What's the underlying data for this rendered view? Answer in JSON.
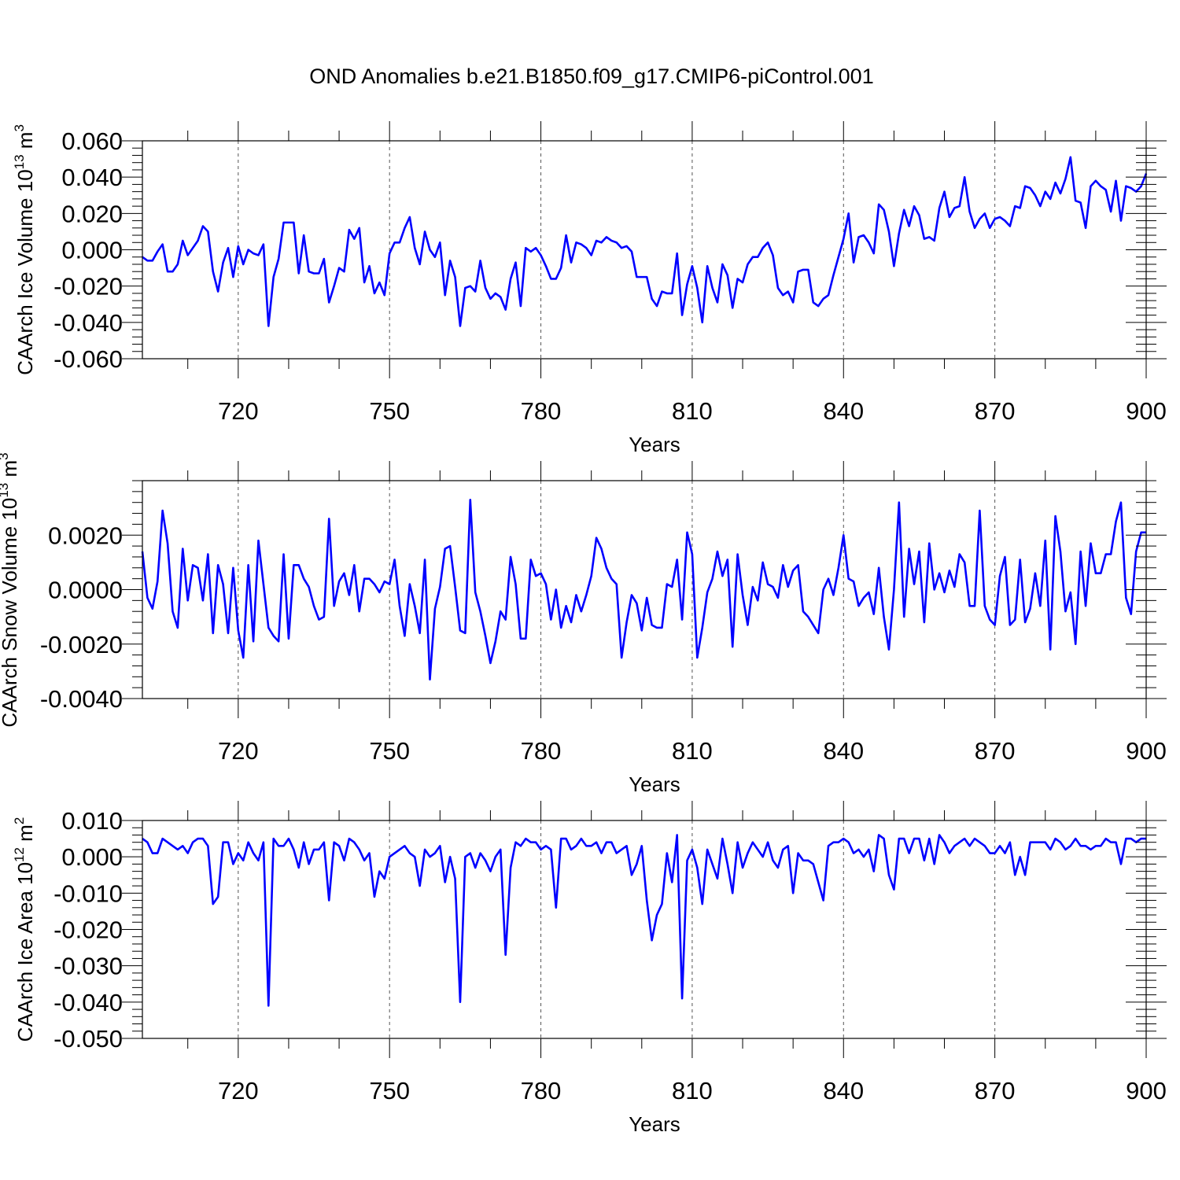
{
  "figure_title": "OND Anomalies b.e21.B1850.f09_g17.CMIP6-piControl.001",
  "chart_data": [
    {
      "type": "line",
      "title": "OND Anomalies b.e21.B1850.f09_g17.CMIP6-piControl.001",
      "xlabel": "Years",
      "ylabel": "CAArch Ice Volume 10¹³ m³",
      "ylabel_parts": {
        "base": "CAArch Ice Volume 10",
        "exp1": "13",
        "unit": " m",
        "exp2": "3"
      },
      "xlim": [
        701,
        900
      ],
      "ylim": [
        -0.06,
        0.06
      ],
      "xticks": [
        720,
        750,
        780,
        810,
        840,
        870,
        900
      ],
      "yticks": [
        -0.06,
        -0.04,
        -0.02,
        0.0,
        0.02,
        0.04,
        0.06
      ],
      "ytick_labels": [
        "-0.060",
        "-0.040",
        "-0.020",
        "0.000",
        "0.020",
        "0.040",
        "0.060"
      ],
      "grid": "vertical dashed at major x ticks",
      "series": [
        {
          "name": "CAArch Ice Volume",
          "color": "#0000ff",
          "x_start": 701,
          "values": [
            -0.004,
            -0.006,
            -0.006,
            -0.001,
            0.003,
            -0.012,
            -0.012,
            -0.008,
            0.005,
            -0.003,
            0.001,
            0.005,
            0.013,
            0.01,
            -0.012,
            -0.023,
            -0.007,
            0.001,
            -0.015,
            0.002,
            -0.008,
            0.0,
            -0.002,
            -0.003,
            0.003,
            -0.042,
            -0.015,
            -0.005,
            0.015,
            0.015,
            0.015,
            -0.013,
            0.008,
            -0.012,
            -0.013,
            -0.013,
            -0.005,
            -0.029,
            -0.02,
            -0.01,
            -0.012,
            0.011,
            0.006,
            0.012,
            -0.018,
            -0.009,
            -0.024,
            -0.018,
            -0.025,
            -0.002,
            0.004,
            0.004,
            0.012,
            0.018,
            0.001,
            -0.008,
            0.01,
            0.0,
            -0.004,
            0.004,
            -0.025,
            -0.006,
            -0.015,
            -0.042,
            -0.021,
            -0.02,
            -0.023,
            -0.006,
            -0.021,
            -0.027,
            -0.024,
            -0.026,
            -0.033,
            -0.016,
            -0.007,
            -0.031,
            0.001,
            -0.001,
            0.001,
            -0.003,
            -0.009,
            -0.016,
            -0.016,
            -0.01,
            0.008,
            -0.007,
            0.004,
            0.003,
            0.001,
            -0.003,
            0.005,
            0.004,
            0.007,
            0.005,
            0.004,
            0.001,
            0.002,
            -0.001,
            -0.015,
            -0.015,
            -0.015,
            -0.027,
            -0.031,
            -0.023,
            -0.024,
            -0.024,
            -0.002,
            -0.036,
            -0.019,
            -0.009,
            -0.021,
            -0.04,
            -0.009,
            -0.021,
            -0.029,
            -0.008,
            -0.014,
            -0.032,
            -0.016,
            -0.018,
            -0.008,
            -0.004,
            -0.004,
            0.001,
            0.004,
            -0.003,
            -0.021,
            -0.025,
            -0.023,
            -0.029,
            -0.012,
            -0.011,
            -0.011,
            -0.029,
            -0.031,
            -0.027,
            -0.025,
            -0.014,
            -0.004,
            0.006,
            0.02,
            -0.007,
            0.007,
            0.008,
            0.004,
            -0.002,
            0.025,
            0.022,
            0.01,
            -0.009,
            0.009,
            0.022,
            0.013,
            0.024,
            0.019,
            0.006,
            0.007,
            0.005,
            0.023,
            0.032,
            0.018,
            0.023,
            0.024,
            0.04,
            0.021,
            0.012,
            0.017,
            0.02,
            0.012,
            0.017,
            0.018,
            0.016,
            0.013,
            0.024,
            0.023,
            0.035,
            0.034,
            0.03,
            0.024,
            0.032,
            0.028,
            0.037,
            0.031,
            0.039,
            0.051,
            0.027,
            0.026,
            0.012,
            0.035,
            0.038,
            0.035,
            0.033,
            0.021,
            0.038,
            0.016,
            0.035,
            0.034,
            0.032,
            0.035,
            0.042
          ]
        }
      ]
    },
    {
      "type": "line",
      "title": "",
      "xlabel": "Years",
      "ylabel": "CAArch Snow Volume 10¹³ m³",
      "ylabel_parts": {
        "base": "CAArch Snow Volume 10",
        "exp1": "13",
        "unit": " m",
        "exp2": "3"
      },
      "xlim": [
        701,
        900
      ],
      "ylim": [
        -0.004,
        0.004
      ],
      "xticks": [
        720,
        750,
        780,
        810,
        840,
        870,
        900
      ],
      "yticks": [
        -0.004,
        -0.002,
        0.0,
        0.002
      ],
      "ytick_labels": [
        "-0.0040",
        "-0.0020",
        "0.0000",
        "0.0020"
      ],
      "grid": "vertical dashed at major x ticks",
      "series": [
        {
          "name": "CAArch Snow Volume",
          "color": "#0000ff",
          "x_start": 701,
          "values": [
            0.0014,
            -0.0003,
            -0.0007,
            0.0003,
            0.0029,
            0.0017,
            -0.0008,
            -0.0014,
            0.0015,
            -0.0004,
            0.0009,
            0.0008,
            -0.0004,
            0.0013,
            -0.0016,
            0.0009,
            0.0002,
            -0.0016,
            0.0008,
            -0.0015,
            -0.0025,
            0.0009,
            -0.0019,
            0.0018,
            0.0002,
            -0.0014,
            -0.0017,
            -0.0019,
            0.0013,
            -0.0018,
            0.0009,
            0.0009,
            0.0004,
            0.0001,
            -0.0006,
            -0.0011,
            -0.001,
            0.0026,
            -0.0006,
            0.0003,
            0.0006,
            -0.0002,
            0.0009,
            -0.0008,
            0.0004,
            0.0004,
            0.0002,
            -0.0001,
            0.0003,
            0.0002,
            0.0011,
            -0.0006,
            -0.0017,
            0.0002,
            -0.0006,
            -0.0016,
            0.0011,
            -0.0033,
            -0.0007,
            0.0001,
            0.0015,
            0.0016,
            0.0001,
            -0.0015,
            -0.0016,
            0.0033,
            -0.0001,
            -0.0008,
            -0.0017,
            -0.0027,
            -0.0019,
            -0.0008,
            -0.0011,
            0.0012,
            0.0002,
            -0.0018,
            -0.0018,
            0.0011,
            0.0005,
            0.0006,
            0.0002,
            -0.0011,
            0.0,
            -0.0014,
            -0.0006,
            -0.0012,
            -0.0002,
            -0.0008,
            -0.0002,
            0.0005,
            0.0019,
            0.0015,
            0.0008,
            0.0004,
            0.0002,
            -0.0025,
            -0.0012,
            -0.0002,
            -0.0005,
            -0.0015,
            -0.0003,
            -0.0013,
            -0.0014,
            -0.0014,
            0.0002,
            0.0001,
            0.0011,
            -0.0011,
            0.0021,
            0.0013,
            -0.0025,
            -0.0014,
            -0.0001,
            0.0004,
            0.0014,
            0.0005,
            0.0011,
            -0.0021,
            0.0013,
            -0.0002,
            -0.0013,
            0.0001,
            -0.0004,
            0.001,
            0.0002,
            0.0001,
            -0.0003,
            0.0009,
            0.0001,
            0.0007,
            0.0009,
            -0.0008,
            -0.001,
            -0.0013,
            -0.0016,
            0.0,
            0.0004,
            -0.0002,
            0.0008,
            0.002,
            0.0004,
            0.0003,
            -0.0006,
            -0.0003,
            -0.0001,
            -0.0009,
            0.0008,
            -0.001,
            -0.0022,
            0.0,
            0.0032,
            -0.001,
            0.0015,
            0.0002,
            0.0014,
            -0.0012,
            0.0017,
            0.0,
            0.0006,
            -0.0001,
            0.0007,
            0.0001,
            0.0013,
            0.001,
            -0.0006,
            -0.0006,
            0.0029,
            -0.0006,
            -0.0011,
            -0.0013,
            0.0005,
            0.0012,
            -0.0013,
            -0.0011,
            0.0011,
            -0.0012,
            -0.0007,
            0.0006,
            -0.0006,
            0.0018,
            -0.0022,
            0.0027,
            0.0014,
            -0.0008,
            -0.0001,
            -0.002,
            0.0014,
            -0.0006,
            0.0017,
            0.0006,
            0.0006,
            0.0013,
            0.0013,
            0.0025,
            0.0032,
            -0.0003,
            -0.0009,
            0.0014,
            0.0021,
            0.0021
          ]
        }
      ]
    },
    {
      "type": "line",
      "title": "",
      "xlabel": "Years",
      "ylabel": "CAArch Ice Area 10¹² m²",
      "ylabel_parts": {
        "base": "CAArch Ice Area 10",
        "exp1": "12",
        "unit": " m",
        "exp2": "2"
      },
      "xlim": [
        701,
        900
      ],
      "ylim": [
        -0.05,
        0.01
      ],
      "xticks": [
        720,
        750,
        780,
        810,
        840,
        870,
        900
      ],
      "yticks": [
        -0.05,
        -0.04,
        -0.03,
        -0.02,
        -0.01,
        0.0,
        0.01
      ],
      "ytick_labels": [
        "-0.050",
        "-0.040",
        "-0.030",
        "-0.020",
        "-0.010",
        "0.000",
        "0.010"
      ],
      "grid": "vertical dashed at major x ticks",
      "series": [
        {
          "name": "CAArch Ice Area",
          "color": "#0000ff",
          "x_start": 701,
          "values": [
            0.005,
            0.004,
            0.001,
            0.001,
            0.005,
            0.004,
            0.003,
            0.002,
            0.003,
            0.001,
            0.004,
            0.005,
            0.005,
            0.003,
            -0.013,
            -0.011,
            0.004,
            0.004,
            -0.002,
            0.001,
            -0.001,
            0.004,
            0.001,
            -0.001,
            0.004,
            -0.041,
            0.005,
            0.003,
            0.003,
            0.005,
            0.002,
            -0.003,
            0.004,
            -0.002,
            0.002,
            0.002,
            0.004,
            -0.012,
            0.004,
            0.003,
            -0.001,
            0.005,
            0.004,
            0.002,
            -0.001,
            0.001,
            -0.011,
            -0.004,
            -0.006,
            0.0,
            0.001,
            0.002,
            0.003,
            0.001,
            0.0,
            -0.008,
            0.002,
            0.0,
            0.001,
            0.003,
            -0.007,
            0.0,
            -0.006,
            -0.04,
            0.0,
            0.001,
            -0.003,
            0.001,
            -0.001,
            -0.004,
            0.0,
            0.002,
            -0.027,
            -0.003,
            0.004,
            0.003,
            0.005,
            0.004,
            0.004,
            0.002,
            0.003,
            0.002,
            -0.014,
            0.005,
            0.005,
            0.002,
            0.003,
            0.005,
            0.003,
            0.003,
            0.004,
            0.001,
            0.004,
            0.004,
            0.001,
            0.002,
            0.003,
            -0.005,
            -0.002,
            0.003,
            -0.012,
            -0.023,
            -0.016,
            -0.013,
            0.001,
            -0.007,
            0.006,
            -0.039,
            -0.001,
            0.002,
            -0.003,
            -0.013,
            0.002,
            -0.002,
            -0.006,
            0.005,
            -0.002,
            -0.01,
            0.004,
            -0.003,
            0.001,
            0.004,
            0.002,
            0.0,
            0.004,
            -0.001,
            -0.003,
            0.002,
            0.003,
            -0.01,
            0.001,
            -0.001,
            -0.001,
            -0.002,
            -0.007,
            -0.012,
            0.003,
            0.004,
            0.004,
            0.005,
            0.004,
            0.001,
            0.002,
            -0.0,
            0.002,
            -0.004,
            0.006,
            0.005,
            -0.005,
            -0.009,
            0.005,
            0.005,
            0.001,
            0.005,
            0.005,
            -0.001,
            0.005,
            -0.002,
            0.006,
            0.004,
            0.001,
            0.003,
            0.004,
            0.005,
            0.003,
            0.005,
            0.004,
            0.003,
            0.001,
            0.001,
            0.003,
            0.001,
            0.004,
            -0.005,
            0.0,
            -0.005,
            0.004,
            0.004,
            0.004,
            0.004,
            0.002,
            0.005,
            0.004,
            0.002,
            0.003,
            0.005,
            0.003,
            0.003,
            0.002,
            0.003,
            0.003,
            0.005,
            0.004,
            0.004,
            -0.002,
            0.005,
            0.005,
            0.004,
            0.005,
            0.005
          ]
        }
      ]
    }
  ]
}
